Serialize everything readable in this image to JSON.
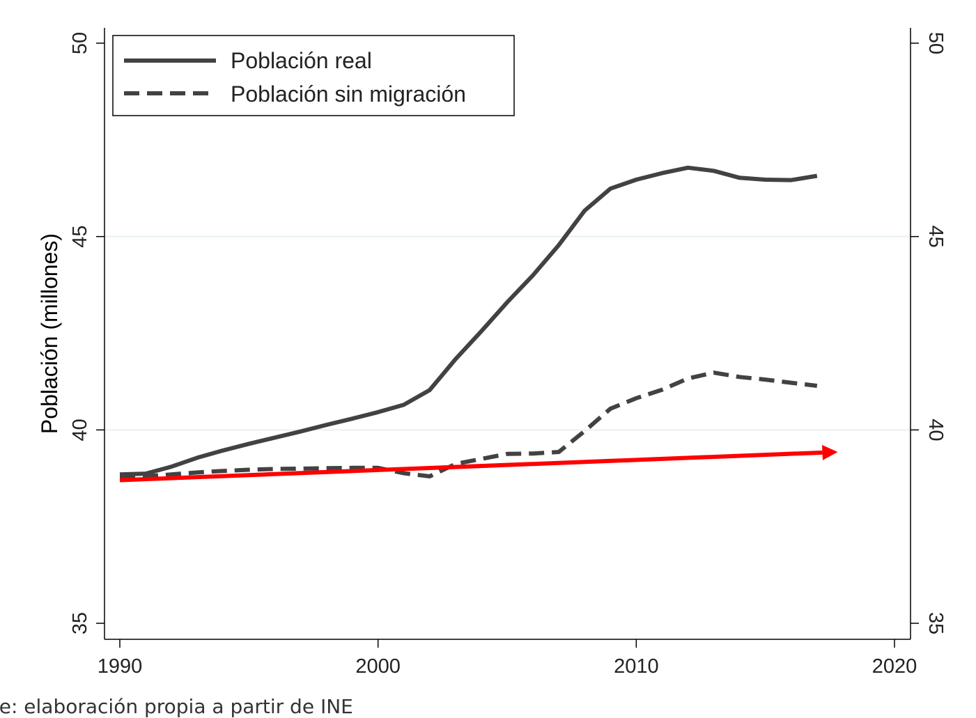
{
  "chart_data": {
    "type": "line",
    "title": "",
    "ylabel": "Población (millones)",
    "xlim": [
      1990,
      2020
    ],
    "ylim": [
      35,
      50
    ],
    "xticks": [
      "1990",
      "2000",
      "2010",
      "2020"
    ],
    "yticks": [
      "35",
      "40",
      "45",
      "50"
    ],
    "grid": true,
    "legend_position": "top-left",
    "series": [
      {
        "name": "Población real",
        "style": "solid",
        "color": "#424242",
        "x": [
          1990,
          1991,
          1992,
          1993,
          1994,
          1995,
          1996,
          1997,
          1998,
          1999,
          2000,
          2001,
          2002,
          2003,
          2004,
          2005,
          2006,
          2007,
          2008,
          2009,
          2010,
          2011,
          2012,
          2013,
          2014,
          2015,
          2016,
          2017
        ],
        "y": [
          38.85,
          38.87,
          39.05,
          39.28,
          39.47,
          39.64,
          39.8,
          39.96,
          40.13,
          40.29,
          40.46,
          40.65,
          41.03,
          41.83,
          42.55,
          43.3,
          44.0,
          44.78,
          45.67,
          46.24,
          46.47,
          46.64,
          46.78,
          46.7,
          46.52,
          46.47,
          46.46,
          46.57
        ]
      },
      {
        "name": "Población sin migración",
        "style": "dashed",
        "color": "#424242",
        "x": [
          1990,
          1991,
          1992,
          1993,
          1994,
          1995,
          1996,
          1997,
          1998,
          1999,
          2000,
          2001,
          2002,
          2003,
          2004,
          2005,
          2006,
          2007,
          2008,
          2009,
          2010,
          2011,
          2012,
          2013,
          2014,
          2015,
          2016,
          2017
        ],
        "y": [
          38.8,
          38.8,
          38.85,
          38.9,
          38.94,
          38.97,
          38.99,
          39.0,
          39.01,
          39.02,
          39.02,
          38.88,
          38.8,
          39.12,
          39.25,
          39.38,
          39.39,
          39.43,
          39.97,
          40.55,
          40.82,
          41.04,
          41.33,
          41.48,
          41.37,
          41.3,
          41.22,
          41.14
        ]
      },
      {
        "name": "",
        "style": "arrow",
        "color": "#ff0000",
        "x": [
          1990,
          2017.8
        ],
        "y": [
          38.7,
          39.43
        ]
      }
    ]
  },
  "caption": "nte: elaboración propia a partir de INE"
}
